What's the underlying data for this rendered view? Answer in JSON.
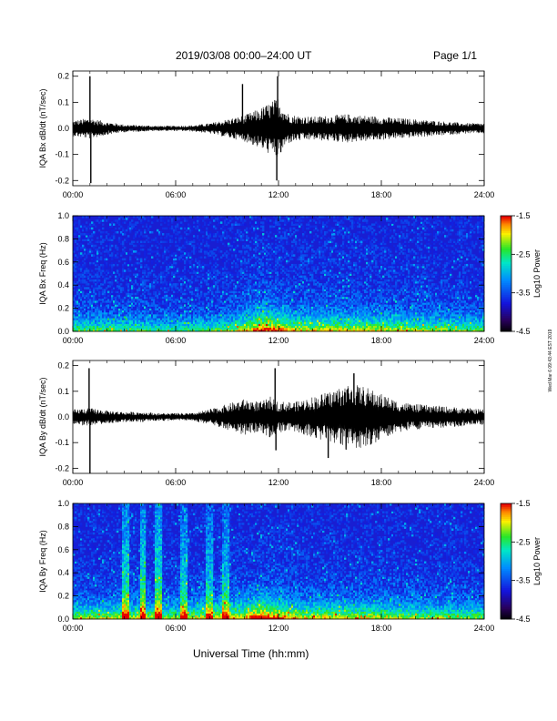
{
  "header": {
    "title": "2019/03/08  00:00‒24:00 UT",
    "page": "Page 1/1"
  },
  "footer": {
    "xlabel": "Universal Time (hh:mm)"
  },
  "side_note": "Wed Mar 6 09:43:44 EST 2019",
  "chart_data": [
    {
      "type": "line",
      "ylabel": "IQA Bx dB/dt (nT/sec)",
      "xlim": [
        0,
        24
      ],
      "ylim": [
        -0.22,
        0.22
      ],
      "xticks": [
        0,
        6,
        12,
        18,
        24
      ],
      "xtick_labels": [
        "00:00",
        "06:00",
        "12:00",
        "18:00",
        "24:00"
      ],
      "yticks": [
        -0.2,
        -0.1,
        0.0,
        0.1,
        0.2
      ],
      "ytick_labels": [
        "-0.2",
        "-0.1",
        "0.0",
        "0.1",
        "0.2"
      ],
      "envelope": {
        "x": [
          0,
          1,
          2,
          3,
          4,
          5,
          6,
          7,
          8,
          9,
          10,
          11,
          11.5,
          12,
          12.5,
          13,
          14,
          15,
          16,
          17,
          18,
          19,
          20,
          21,
          22,
          23,
          24
        ],
        "amp": [
          0.03,
          0.04,
          0.025,
          0.015,
          0.012,
          0.01,
          0.01,
          0.012,
          0.02,
          0.035,
          0.05,
          0.08,
          0.1,
          0.12,
          0.06,
          0.05,
          0.045,
          0.05,
          0.055,
          0.05,
          0.045,
          0.04,
          0.035,
          0.03,
          0.025,
          0.02,
          0.02
        ]
      },
      "spikes": [
        {
          "x": 1.0,
          "y": 0.2
        },
        {
          "x": 1.05,
          "y": -0.21
        },
        {
          "x": 11.95,
          "y": 0.2
        },
        {
          "x": 11.9,
          "y": -0.2
        },
        {
          "x": 9.9,
          "y": 0.17
        }
      ]
    },
    {
      "type": "heatmap",
      "ylabel": "IQA Bx Freq (Hz)",
      "xlim": [
        0,
        24
      ],
      "ylim": [
        0.0,
        1.0
      ],
      "xticks": [
        0,
        6,
        12,
        18,
        24
      ],
      "xtick_labels": [
        "00:00",
        "06:00",
        "12:00",
        "18:00",
        "24:00"
      ],
      "yticks": [
        0.0,
        0.2,
        0.4,
        0.6,
        0.8,
        1.0
      ],
      "ytick_labels": [
        "0.0",
        "0.2",
        "0.4",
        "0.6",
        "0.8",
        "1.0"
      ],
      "colorbar": {
        "label": "Log10 Power",
        "range": [
          -4.5,
          -1.5
        ],
        "ticks": [
          -1.5,
          -2.5,
          -3.5,
          -4.5
        ],
        "tick_labels": [
          "-1.5",
          "-2.5",
          "-3.5",
          "-4.5"
        ]
      },
      "activity": {
        "x": [
          0,
          3,
          6,
          9,
          10,
          11,
          12,
          13,
          15,
          18,
          21,
          24
        ],
        "level": [
          0.25,
          0.2,
          0.15,
          0.25,
          0.4,
          0.6,
          0.55,
          0.4,
          0.4,
          0.35,
          0.3,
          0.25
        ]
      },
      "bands": []
    },
    {
      "type": "line",
      "ylabel": "IQA By dB/dt (nT/sec)",
      "xlim": [
        0,
        24
      ],
      "ylim": [
        -0.22,
        0.22
      ],
      "xticks": [
        0,
        6,
        12,
        18,
        24
      ],
      "xtick_labels": [
        "00:00",
        "06:00",
        "12:00",
        "18:00",
        "24:00"
      ],
      "yticks": [
        -0.2,
        -0.1,
        0.0,
        0.1,
        0.2
      ],
      "ytick_labels": [
        "-0.2",
        "-0.1",
        "0.0",
        "0.1",
        "0.2"
      ],
      "envelope": {
        "x": [
          0,
          1,
          2,
          3,
          4,
          5,
          6,
          7,
          8,
          9,
          10,
          11,
          11.5,
          12,
          13,
          14,
          15,
          16,
          17,
          18,
          19,
          20,
          21,
          22,
          23,
          24
        ],
        "amp": [
          0.03,
          0.035,
          0.025,
          0.02,
          0.02,
          0.015,
          0.015,
          0.015,
          0.03,
          0.05,
          0.07,
          0.06,
          0.08,
          0.06,
          0.06,
          0.08,
          0.1,
          0.13,
          0.12,
          0.09,
          0.06,
          0.05,
          0.045,
          0.04,
          0.035,
          0.03
        ]
      },
      "spikes": [
        {
          "x": 0.95,
          "y": 0.19
        },
        {
          "x": 1.0,
          "y": -0.22
        },
        {
          "x": 11.8,
          "y": 0.19
        },
        {
          "x": 11.85,
          "y": -0.13
        },
        {
          "x": 16.4,
          "y": 0.17
        },
        {
          "x": 14.9,
          "y": -0.16
        }
      ]
    },
    {
      "type": "heatmap",
      "ylabel": "IQA By Freq (Hz)",
      "xlim": [
        0,
        24
      ],
      "ylim": [
        0.0,
        1.0
      ],
      "xticks": [
        0,
        6,
        12,
        18,
        24
      ],
      "xtick_labels": [
        "00:00",
        "06:00",
        "12:00",
        "18:00",
        "24:00"
      ],
      "yticks": [
        0.0,
        0.2,
        0.4,
        0.6,
        0.8,
        1.0
      ],
      "ytick_labels": [
        "0.0",
        "0.2",
        "0.4",
        "0.6",
        "0.8",
        "1.0"
      ],
      "colorbar": {
        "label": "Log10 Power",
        "range": [
          -4.5,
          -1.5
        ],
        "ticks": [
          -1.5,
          -2.5,
          -3.5,
          -4.5
        ],
        "tick_labels": [
          "-1.5",
          "-2.5",
          "-3.5",
          "-4.5"
        ]
      },
      "activity": {
        "x": [
          0,
          3,
          6,
          8,
          9,
          10,
          11,
          12,
          13,
          15,
          18,
          21,
          24
        ],
        "level": [
          0.3,
          0.35,
          0.3,
          0.4,
          0.45,
          0.45,
          0.65,
          0.55,
          0.4,
          0.4,
          0.35,
          0.3,
          0.25
        ]
      },
      "bands": [
        {
          "t0": 2.9,
          "t1": 3.25,
          "level": 0.45
        },
        {
          "t0": 3.9,
          "t1": 4.3,
          "level": 0.5
        },
        {
          "t0": 4.8,
          "t1": 5.2,
          "level": 0.5
        },
        {
          "t0": 6.3,
          "t1": 6.7,
          "level": 0.4
        },
        {
          "t0": 7.8,
          "t1": 8.2,
          "level": 0.35
        },
        {
          "t0": 8.7,
          "t1": 9.1,
          "level": 0.35
        }
      ]
    }
  ]
}
